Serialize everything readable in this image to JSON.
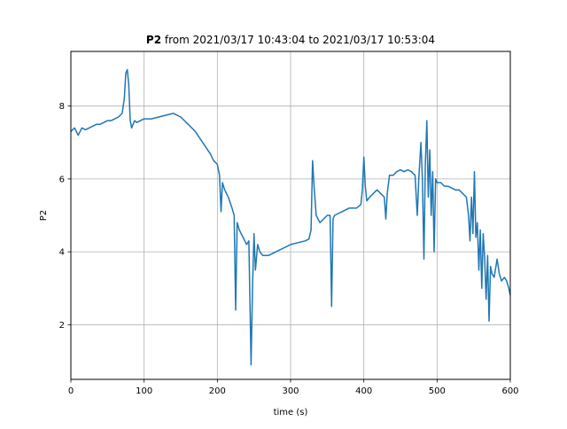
{
  "chart_data": {
    "type": "line",
    "title_bold": "P2",
    "title_rest": " from 2021/03/17 10:43:04 to 2021/03/17 10:53:04",
    "xlabel": "time (s)",
    "ylabel": "P2",
    "xlim": [
      0,
      600
    ],
    "ylim": [
      0.5,
      9.5
    ],
    "xticks": [
      0,
      100,
      200,
      300,
      400,
      500,
      600
    ],
    "yticks": [
      2,
      4,
      6,
      8
    ],
    "grid": true,
    "color": "#1f77b4",
    "series": [
      {
        "values": [
          [
            0,
            7.3
          ],
          [
            5,
            7.4
          ],
          [
            10,
            7.2
          ],
          [
            15,
            7.4
          ],
          [
            20,
            7.35
          ],
          [
            25,
            7.4
          ],
          [
            30,
            7.45
          ],
          [
            35,
            7.5
          ],
          [
            40,
            7.5
          ],
          [
            45,
            7.55
          ],
          [
            50,
            7.6
          ],
          [
            55,
            7.6
          ],
          [
            60,
            7.65
          ],
          [
            65,
            7.7
          ],
          [
            70,
            7.8
          ],
          [
            73,
            8.2
          ],
          [
            75,
            8.9
          ],
          [
            77,
            9.0
          ],
          [
            79,
            8.6
          ],
          [
            81,
            7.6
          ],
          [
            83,
            7.4
          ],
          [
            87,
            7.6
          ],
          [
            90,
            7.55
          ],
          [
            95,
            7.6
          ],
          [
            100,
            7.65
          ],
          [
            110,
            7.65
          ],
          [
            120,
            7.7
          ],
          [
            130,
            7.75
          ],
          [
            140,
            7.8
          ],
          [
            150,
            7.7
          ],
          [
            160,
            7.5
          ],
          [
            170,
            7.3
          ],
          [
            180,
            7.0
          ],
          [
            190,
            6.7
          ],
          [
            195,
            6.5
          ],
          [
            200,
            6.4
          ],
          [
            203,
            6.1
          ],
          [
            205,
            5.1
          ],
          [
            207,
            5.9
          ],
          [
            210,
            5.7
          ],
          [
            215,
            5.5
          ],
          [
            220,
            5.2
          ],
          [
            223,
            5.0
          ],
          [
            225,
            2.4
          ],
          [
            227,
            4.8
          ],
          [
            230,
            4.6
          ],
          [
            235,
            4.4
          ],
          [
            240,
            4.2
          ],
          [
            243,
            4.3
          ],
          [
            246,
            0.9
          ],
          [
            248,
            3.0
          ],
          [
            250,
            4.5
          ],
          [
            252,
            3.5
          ],
          [
            255,
            4.2
          ],
          [
            258,
            4.0
          ],
          [
            262,
            3.9
          ],
          [
            270,
            3.9
          ],
          [
            280,
            4.0
          ],
          [
            290,
            4.1
          ],
          [
            300,
            4.2
          ],
          [
            310,
            4.25
          ],
          [
            320,
            4.3
          ],
          [
            325,
            4.35
          ],
          [
            328,
            4.6
          ],
          [
            330,
            6.5
          ],
          [
            332,
            5.8
          ],
          [
            335,
            5.0
          ],
          [
            340,
            4.8
          ],
          [
            345,
            4.9
          ],
          [
            350,
            5.0
          ],
          [
            354,
            5.0
          ],
          [
            356,
            2.5
          ],
          [
            358,
            4.9
          ],
          [
            360,
            5.0
          ],
          [
            370,
            5.1
          ],
          [
            380,
            5.2
          ],
          [
            390,
            5.2
          ],
          [
            396,
            5.3
          ],
          [
            398,
            5.7
          ],
          [
            400,
            6.6
          ],
          [
            402,
            5.8
          ],
          [
            404,
            5.4
          ],
          [
            408,
            5.5
          ],
          [
            413,
            5.6
          ],
          [
            418,
            5.7
          ],
          [
            423,
            5.6
          ],
          [
            428,
            5.5
          ],
          [
            430,
            4.9
          ],
          [
            432,
            5.6
          ],
          [
            435,
            6.1
          ],
          [
            440,
            6.1
          ],
          [
            445,
            6.2
          ],
          [
            450,
            6.25
          ],
          [
            455,
            6.2
          ],
          [
            460,
            6.25
          ],
          [
            465,
            6.2
          ],
          [
            470,
            6.1
          ],
          [
            473,
            5.0
          ],
          [
            475,
            6.0
          ],
          [
            478,
            7.0
          ],
          [
            480,
            6.0
          ],
          [
            482,
            3.8
          ],
          [
            484,
            6.4
          ],
          [
            486,
            7.6
          ],
          [
            488,
            5.5
          ],
          [
            490,
            6.8
          ],
          [
            492,
            5.0
          ],
          [
            494,
            6.2
          ],
          [
            496,
            4.0
          ],
          [
            498,
            6.0
          ],
          [
            500,
            5.9
          ],
          [
            505,
            5.9
          ],
          [
            510,
            5.8
          ],
          [
            515,
            5.8
          ],
          [
            520,
            5.75
          ],
          [
            525,
            5.7
          ],
          [
            530,
            5.7
          ],
          [
            535,
            5.6
          ],
          [
            540,
            5.5
          ],
          [
            543,
            5.0
          ],
          [
            545,
            4.3
          ],
          [
            547,
            5.5
          ],
          [
            549,
            4.5
          ],
          [
            551,
            6.2
          ],
          [
            553,
            4.4
          ],
          [
            555,
            4.8
          ],
          [
            557,
            3.5
          ],
          [
            559,
            4.6
          ],
          [
            561,
            3.0
          ],
          [
            563,
            4.5
          ],
          [
            565,
            3.8
          ],
          [
            567,
            2.7
          ],
          [
            569,
            3.9
          ],
          [
            571,
            2.1
          ],
          [
            573,
            3.6
          ],
          [
            575,
            3.4
          ],
          [
            578,
            3.3
          ],
          [
            582,
            3.8
          ],
          [
            585,
            3.4
          ],
          [
            588,
            3.2
          ],
          [
            592,
            3.3
          ],
          [
            595,
            3.2
          ],
          [
            598,
            3.0
          ],
          [
            600,
            2.8
          ]
        ]
      }
    ]
  }
}
